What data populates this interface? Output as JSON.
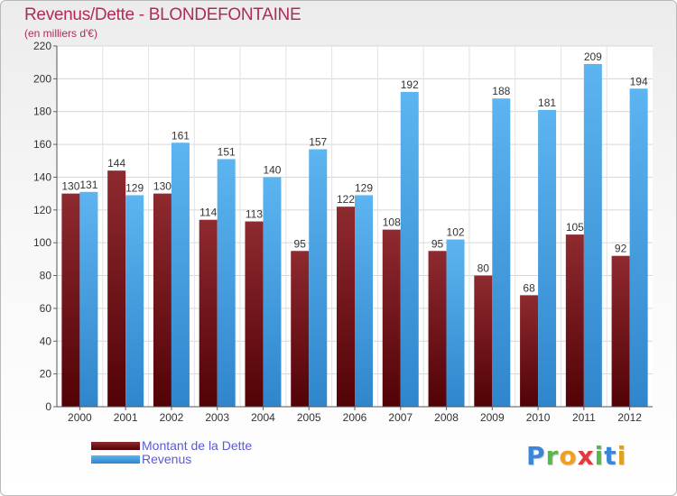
{
  "header": {
    "title": "Revenus/Dette - BLONDEFONTAINE",
    "subtitle": "(en milliers d'€)"
  },
  "legend": {
    "items": [
      {
        "label": "Montant de la Dette",
        "color": "#6b0f14"
      },
      {
        "label": "Revenus",
        "color": "#4aa3e6"
      }
    ]
  },
  "brand": {
    "letters": [
      {
        "char": "P",
        "color": "#3a86d8"
      },
      {
        "char": "r",
        "color": "#58b848"
      },
      {
        "char": "o",
        "color": "#f0a020"
      },
      {
        "char": "x",
        "color": "#e03a3a"
      },
      {
        "char": "i",
        "color": "#58b848"
      },
      {
        "char": "t",
        "color": "#3a86d8"
      },
      {
        "char": "i",
        "color": "#e0a020"
      }
    ]
  },
  "chart_data": {
    "type": "bar",
    "categories": [
      "2000",
      "2001",
      "2002",
      "2003",
      "2004",
      "2005",
      "2006",
      "2007",
      "2008",
      "2009",
      "2010",
      "2011",
      "2012"
    ],
    "series": [
      {
        "name": "Montant de la Dette",
        "values": [
          130,
          144,
          130,
          114,
          113,
          95,
          122,
          108,
          95,
          80,
          68,
          105,
          92
        ]
      },
      {
        "name": "Revenus",
        "values": [
          131,
          129,
          161,
          151,
          140,
          157,
          129,
          192,
          102,
          188,
          181,
          209,
          194
        ]
      }
    ],
    "ylim": [
      0,
      220
    ],
    "yticks": [
      0,
      20,
      40,
      60,
      80,
      100,
      120,
      140,
      160,
      180,
      200,
      220
    ],
    "grid": true
  }
}
